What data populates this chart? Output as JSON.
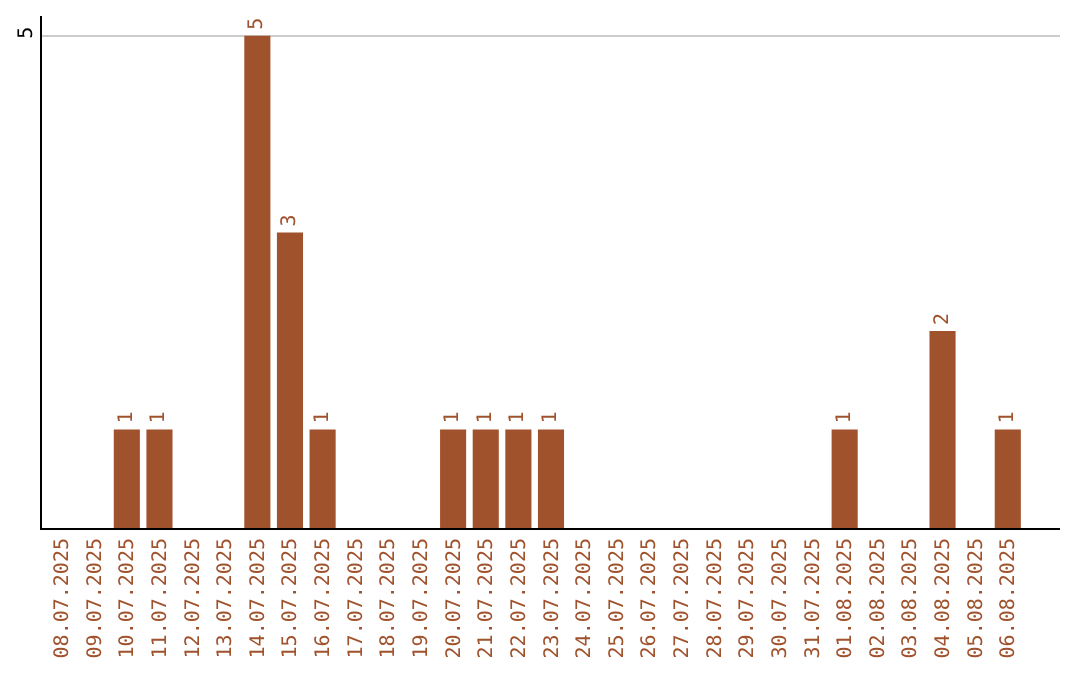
{
  "chart_data": {
    "type": "bar",
    "categories": [
      "08.07.2025",
      "09.07.2025",
      "10.07.2025",
      "11.07.2025",
      "12.07.2025",
      "13.07.2025",
      "14.07.2025",
      "15.07.2025",
      "16.07.2025",
      "17.07.2025",
      "18.07.2025",
      "19.07.2025",
      "20.07.2025",
      "21.07.2025",
      "22.07.2025",
      "23.07.2025",
      "24.07.2025",
      "25.07.2025",
      "26.07.2025",
      "27.07.2025",
      "28.07.2025",
      "29.07.2025",
      "30.07.2025",
      "31.07.2025",
      "01.08.2025",
      "02.08.2025",
      "03.08.2025",
      "04.08.2025",
      "05.08.2025",
      "06.08.2025"
    ],
    "values": [
      0,
      0,
      1,
      1,
      0,
      0,
      5,
      3,
      1,
      0,
      0,
      0,
      1,
      1,
      1,
      1,
      0,
      0,
      0,
      0,
      0,
      0,
      0,
      0,
      1,
      0,
      0,
      2,
      0,
      1
    ],
    "value_labels": [
      null,
      null,
      "1",
      "1",
      null,
      null,
      "5",
      "3",
      "1",
      null,
      null,
      null,
      "1",
      "1",
      "1",
      "1",
      null,
      null,
      null,
      null,
      null,
      null,
      null,
      null,
      "1",
      null,
      null,
      "2",
      null,
      "1"
    ],
    "color": "#a0522d",
    "ylim": [
      0,
      5.2
    ],
    "yticks": [
      5
    ],
    "grid": "y",
    "legend": false
  }
}
